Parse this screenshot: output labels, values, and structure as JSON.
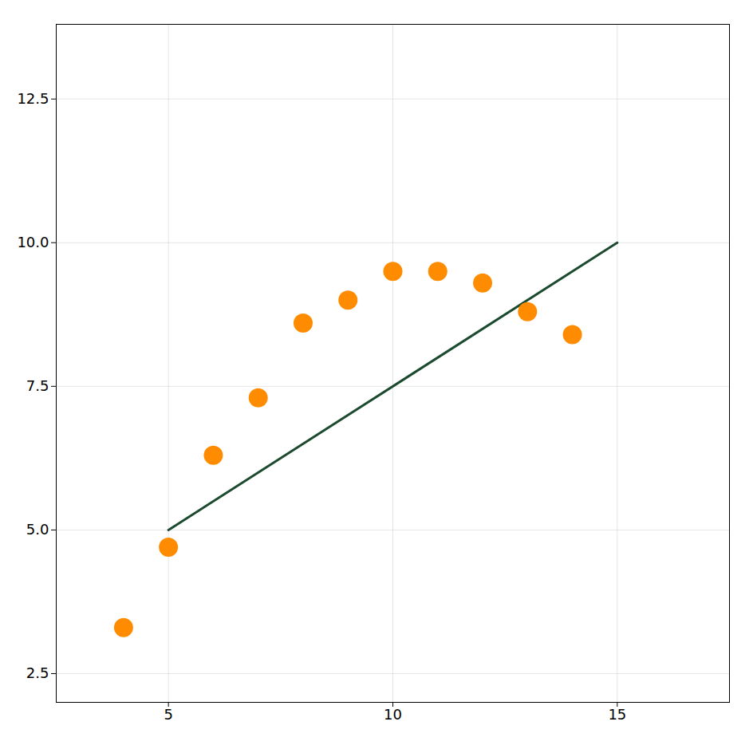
{
  "chart_data": {
    "type": "scatter",
    "series": [
      {
        "type": "line",
        "color": "#1C4A2E",
        "x": [
          5,
          15
        ],
        "values": [
          5.0,
          10.0
        ]
      },
      {
        "type": "scatter",
        "color": "#FF8C00",
        "x": [
          4,
          5,
          6,
          7,
          8,
          9,
          10,
          11,
          12,
          13,
          14
        ],
        "values": [
          3.3,
          4.7,
          6.3,
          7.3,
          8.6,
          9.0,
          9.5,
          9.5,
          9.3,
          8.8,
          8.4
        ]
      }
    ],
    "xlim": [
      2.5,
      17.5
    ],
    "ylim": [
      2.0,
      13.8
    ],
    "xticks": [
      5,
      10,
      15
    ],
    "yticks": [
      2.5,
      {
        "value": 5.0,
        "label": "5.0"
      },
      7.5,
      {
        "value": 10.0,
        "label": "10.0"
      },
      12.5
    ],
    "grid": true
  }
}
